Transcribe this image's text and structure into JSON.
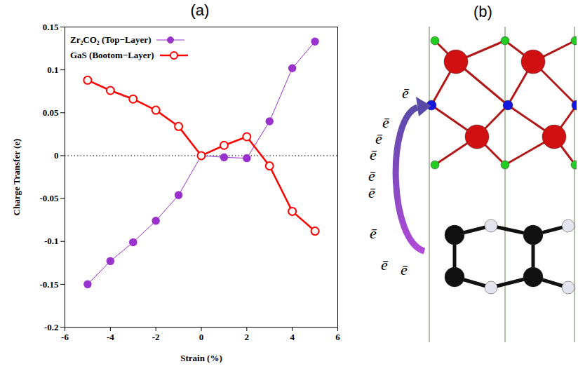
{
  "chart_data": {
    "type": "line",
    "title": "(a)",
    "x_label": "Strain (%)",
    "y_label": "Charge Transfer (e)",
    "x": [
      -5,
      -4,
      -3,
      -2,
      -1,
      0,
      1,
      2,
      3,
      4,
      5
    ],
    "series": [
      {
        "name": "Zr₂CO₂ (Top−Layer)",
        "color": "#9932cc",
        "marker": "circle",
        "line_style": "solid",
        "values": [
          -0.15,
          -0.123,
          -0.101,
          -0.076,
          -0.046,
          0,
          -0.002,
          -0.003,
          0.04,
          0.102,
          0.133
        ]
      },
      {
        "name": "GaS (Bootom−Layer)",
        "color": "#ff0000",
        "marker": "circle-open",
        "line_style": "solid",
        "values": [
          0.088,
          0.076,
          0.066,
          0.053,
          0.034,
          0,
          0.012,
          0.022,
          -0.012,
          -0.065,
          -0.088
        ]
      }
    ],
    "xlim": [
      -6,
      6
    ],
    "xticks": [
      -6,
      -4,
      -2,
      0,
      2,
      4,
      6
    ],
    "ylim": [
      -0.2,
      0.15
    ],
    "yticks": [
      -0.2,
      -0.15,
      -0.1,
      -0.05,
      0,
      0.05,
      0.1,
      0.15
    ],
    "hlines": [
      0
    ],
    "legend": "top-left"
  },
  "diagram": {
    "label": "(b)",
    "electron_labels": [
      "ē",
      "ē",
      "ē",
      "ē",
      "ē",
      "ē",
      "ē",
      "ē",
      "ē"
    ]
  }
}
